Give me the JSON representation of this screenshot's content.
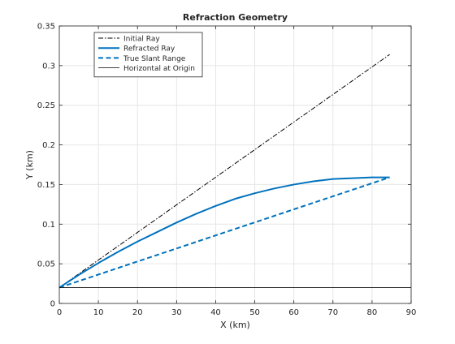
{
  "chart_data": {
    "type": "line",
    "title": "Refraction Geometry",
    "xlabel": "X (km)",
    "ylabel": "Y (km)",
    "xlim": [
      0,
      90
    ],
    "ylim": [
      0,
      0.35
    ],
    "xticks": [
      0,
      10,
      20,
      30,
      40,
      50,
      60,
      70,
      80,
      90
    ],
    "yticks": [
      0,
      0.05,
      0.1,
      0.15,
      0.2,
      0.25,
      0.3,
      0.35
    ],
    "xtick_labels": [
      "0",
      "10",
      "20",
      "30",
      "40",
      "50",
      "60",
      "70",
      "80",
      "90"
    ],
    "ytick_labels": [
      "0",
      "0.05",
      "0.1",
      "0.15",
      "0.2",
      "0.25",
      "0.3",
      "0.35"
    ],
    "grid": true,
    "legend_position": "top-left",
    "series": [
      {
        "name": "Initial Ray",
        "color": "#000000",
        "style": "dash-dot",
        "x": [
          0,
          84.5
        ],
        "y": [
          0.02,
          0.314
        ]
      },
      {
        "name": "Refracted Ray",
        "color": "#0072BD",
        "style": "solid",
        "x": [
          0,
          5,
          10,
          15,
          20,
          25,
          30,
          35,
          40,
          45,
          50,
          55,
          60,
          65,
          70,
          75,
          80,
          84.5
        ],
        "y": [
          0.02,
          0.036,
          0.051,
          0.065,
          0.078,
          0.09,
          0.102,
          0.113,
          0.123,
          0.132,
          0.139,
          0.145,
          0.15,
          0.154,
          0.157,
          0.158,
          0.159,
          0.159
        ]
      },
      {
        "name": "True Slant Range",
        "color": "#0072BD",
        "style": "dashed",
        "x": [
          0,
          84.5
        ],
        "y": [
          0.02,
          0.159
        ]
      },
      {
        "name": "Horizontal at Origin",
        "color": "#000000",
        "style": "solid-thin",
        "x": [
          0,
          90
        ],
        "y": [
          0.02,
          0.02
        ]
      }
    ]
  }
}
